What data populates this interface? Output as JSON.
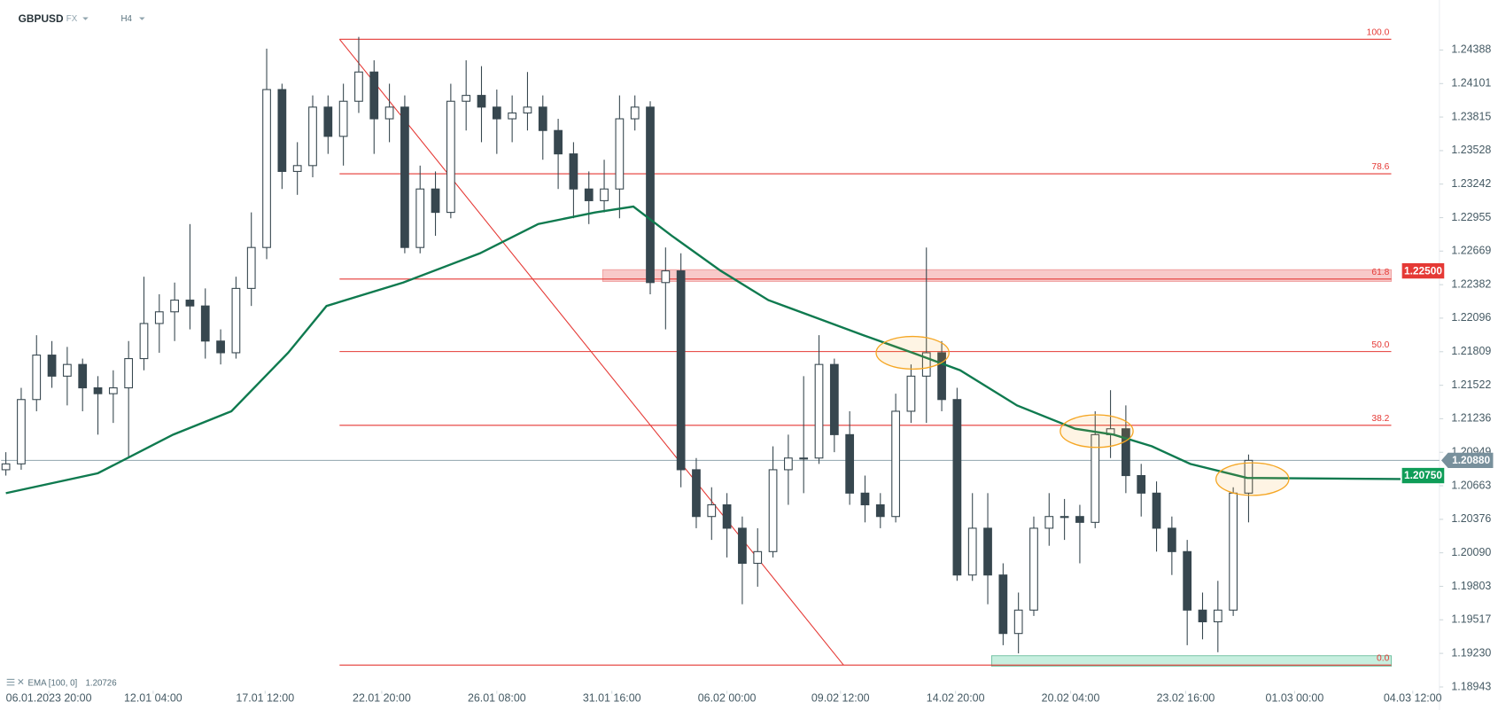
{
  "chart_data": {
    "type": "candlestick",
    "symbol": "GBPUSD",
    "market": "FX",
    "timeframe": "H4",
    "ylim": [
      1.1891,
      1.2475
    ],
    "yticks": [
      1.24388,
      1.24101,
      1.23815,
      1.23528,
      1.23242,
      1.22955,
      1.22669,
      1.22382,
      1.22096,
      1.21809,
      1.21522,
      1.21236,
      1.20949,
      1.20663,
      1.20376,
      {
        "value": 1.2009,
        "label": "1.20090"
      },
      1.19803,
      1.19517,
      {
        "value": 1.1923,
        "label": "1.19230"
      },
      1.18943
    ],
    "xlim": [
      -0.3125,
      93.4375
    ],
    "xticks": [
      {
        "value": 2.8,
        "label": "06.01.2023  20:00"
      },
      {
        "value": 9.6,
        "label": "12.01  04:00"
      },
      {
        "value": 16.9,
        "label": "17.01  12:00"
      },
      {
        "value": 24.5,
        "label": "22.01  20:00"
      },
      {
        "value": 32,
        "label": "26.01  08:00"
      },
      {
        "value": 39.5,
        "label": "31.01  16:00"
      },
      {
        "value": 47,
        "label": "06.02  00:00"
      },
      {
        "value": 54.4,
        "label": "09.02  12:00"
      },
      {
        "value": 61.9,
        "label": "14.02  20:00"
      },
      {
        "value": 69.4,
        "label": "20.02  04:00"
      },
      {
        "value": 76.9,
        "label": "23.02  16:00"
      },
      {
        "value": 84,
        "label": "01.03  00:00"
      },
      {
        "value": 91.7,
        "label": "04.03  12:00"
      }
    ],
    "up_color": "#ffffff",
    "down_color": "#37474f",
    "wick_color": "#37474f",
    "x": [
      0,
      1,
      2,
      3,
      4,
      5,
      6,
      7,
      8,
      9,
      10,
      11,
      12,
      13,
      14,
      15,
      16,
      17,
      18,
      19,
      20,
      21,
      22,
      23,
      24,
      25,
      26,
      27,
      28,
      29,
      30,
      31,
      32,
      33,
      34,
      35,
      36,
      37,
      38,
      39,
      40,
      41,
      42,
      43,
      44,
      45,
      46,
      47,
      48,
      49,
      50,
      51,
      52,
      53,
      54,
      55,
      56,
      57,
      58,
      59,
      60,
      61,
      62,
      63,
      64,
      65,
      66,
      67,
      68,
      69,
      70,
      71,
      72,
      73,
      74,
      75,
      76,
      77,
      78,
      79,
      80,
      81
    ],
    "candles": [
      [
        1.208,
        1.2095,
        1.2075,
        1.2085
      ],
      [
        1.2085,
        1.215,
        1.208,
        1.214
      ],
      [
        1.214,
        1.2195,
        1.213,
        1.2178
      ],
      [
        1.2178,
        1.219,
        1.215,
        1.216
      ],
      [
        1.216,
        1.2185,
        1.2135,
        1.217
      ],
      [
        1.217,
        1.2175,
        1.213,
        1.215
      ],
      [
        1.215,
        1.216,
        1.211,
        1.2145
      ],
      [
        1.2145,
        1.2165,
        1.212,
        1.215
      ],
      [
        1.215,
        1.219,
        1.209,
        1.2175
      ],
      [
        1.2175,
        1.2245,
        1.2165,
        1.2205
      ],
      [
        1.2205,
        1.223,
        1.218,
        1.2215
      ],
      [
        1.2215,
        1.224,
        1.219,
        1.2225
      ],
      [
        1.2225,
        1.229,
        1.22,
        1.222
      ],
      [
        1.222,
        1.2235,
        1.2175,
        1.219
      ],
      [
        1.219,
        1.22,
        1.217,
        1.218
      ],
      [
        1.218,
        1.2245,
        1.2175,
        1.2235
      ],
      [
        1.2235,
        1.23,
        1.222,
        1.227
      ],
      [
        1.227,
        1.244,
        1.226,
        1.2405
      ],
      [
        1.2405,
        1.241,
        1.232,
        1.2335
      ],
      [
        1.2335,
        1.236,
        1.2315,
        1.234
      ],
      [
        1.234,
        1.24,
        1.233,
        1.239
      ],
      [
        1.239,
        1.24,
        1.235,
        1.2365
      ],
      [
        1.2365,
        1.241,
        1.234,
        1.2395
      ],
      [
        1.2395,
        1.245,
        1.2385,
        1.242
      ],
      [
        1.242,
        1.243,
        1.235,
        1.238
      ],
      [
        1.238,
        1.241,
        1.236,
        1.239
      ],
      [
        1.239,
        1.24,
        1.2265,
        1.227
      ],
      [
        1.227,
        1.234,
        1.2265,
        1.232
      ],
      [
        1.232,
        1.2335,
        1.228,
        1.23
      ],
      [
        1.23,
        1.241,
        1.2295,
        1.2395
      ],
      [
        1.2395,
        1.243,
        1.237,
        1.24
      ],
      [
        1.24,
        1.2425,
        1.236,
        1.239
      ],
      [
        1.239,
        1.2405,
        1.235,
        1.238
      ],
      [
        1.238,
        1.24,
        1.236,
        1.2385
      ],
      [
        1.2385,
        1.242,
        1.237,
        1.239
      ],
      [
        1.239,
        1.24,
        1.2345,
        1.237
      ],
      [
        1.237,
        1.238,
        1.232,
        1.235
      ],
      [
        1.235,
        1.236,
        1.2295,
        1.232
      ],
      [
        1.232,
        1.2335,
        1.229,
        1.231
      ],
      [
        1.231,
        1.2345,
        1.23,
        1.232
      ],
      [
        1.232,
        1.24,
        1.2295,
        1.238
      ],
      [
        1.238,
        1.24,
        1.237,
        1.239
      ],
      [
        1.239,
        1.2395,
        1.223,
        1.224
      ],
      [
        1.224,
        1.227,
        1.22,
        1.225
      ],
      [
        1.225,
        1.2265,
        1.2065,
        1.208
      ],
      [
        1.208,
        1.209,
        1.203,
        1.204
      ],
      [
        1.204,
        1.2065,
        1.202,
        1.205
      ],
      [
        1.205,
        1.206,
        1.2005,
        1.203
      ],
      [
        1.203,
        1.204,
        1.1965,
        1.2
      ],
      [
        1.2,
        1.203,
        1.198,
        1.201
      ],
      [
        1.201,
        1.21,
        1.2005,
        1.208
      ],
      [
        1.208,
        1.211,
        1.205,
        1.209
      ],
      [
        1.209,
        1.216,
        1.206,
        1.209
      ],
      [
        1.209,
        1.2195,
        1.2085,
        1.217
      ],
      [
        1.217,
        1.2175,
        1.2095,
        1.211
      ],
      [
        1.211,
        1.213,
        1.205,
        1.206
      ],
      [
        1.206,
        1.2075,
        1.2035,
        1.205
      ],
      [
        1.205,
        1.206,
        1.203,
        1.204
      ],
      [
        1.204,
        1.2145,
        1.2035,
        1.213
      ],
      [
        1.213,
        1.217,
        1.212,
        1.216
      ],
      [
        1.216,
        1.227,
        1.212,
        1.218
      ],
      [
        1.218,
        1.219,
        1.213,
        1.214
      ],
      [
        1.214,
        1.215,
        1.1985,
        1.199
      ],
      [
        1.199,
        1.206,
        1.1985,
        1.203
      ],
      [
        1.203,
        1.206,
        1.1965,
        1.199
      ],
      [
        1.199,
        1.2,
        1.193,
        1.194
      ],
      [
        1.194,
        1.1975,
        1.1923,
        1.196
      ],
      [
        1.196,
        1.204,
        1.1955,
        1.203
      ],
      [
        1.203,
        1.206,
        1.2015,
        1.204
      ],
      [
        1.204,
        1.2055,
        1.202,
        1.204
      ],
      [
        1.204,
        1.205,
        1.2,
        1.2035
      ],
      [
        1.2035,
        1.213,
        1.203,
        1.211
      ],
      [
        1.211,
        1.2148,
        1.209,
        1.2115
      ],
      [
        1.2115,
        1.2135,
        1.206,
        1.2075
      ],
      [
        1.2075,
        1.2085,
        1.204,
        1.206
      ],
      [
        1.206,
        1.207,
        1.201,
        1.203
      ],
      [
        1.203,
        1.204,
        1.199,
        1.201
      ],
      [
        1.201,
        1.202,
        1.193,
        1.196
      ],
      [
        1.196,
        1.1975,
        1.1935,
        1.195
      ],
      [
        1.195,
        1.1985,
        1.1924,
        1.196
      ],
      [
        1.196,
        1.2065,
        1.1955,
        1.206
      ],
      [
        1.206,
        1.2093,
        1.2035,
        1.2088
      ]
    ],
    "ema": {
      "name": "EMA [100, 0]",
      "last": 1.20726,
      "color": "#0f7a4f",
      "x": [
        0,
        6,
        10.9,
        14.7,
        18.4,
        20.9,
        25.9,
        30.9,
        34.7,
        38.4,
        40.9,
        43.4,
        46.6,
        49.7,
        52.8,
        55.9,
        59.1,
        62.2,
        65.9,
        69.7,
        72.2,
        74.7,
        77.2,
        80.9,
        90.9
      ],
      "values": [
        1.206,
        1.2077,
        1.211,
        1.213,
        1.218,
        1.222,
        1.224,
        1.2265,
        1.229,
        1.23,
        1.2305,
        1.228,
        1.225,
        1.2225,
        1.221,
        1.2195,
        1.218,
        1.2165,
        1.2135,
        1.2115,
        1.211,
        1.21,
        1.2085,
        1.2073,
        1.2072
      ]
    },
    "fib": {
      "x": [
        21.75,
        90.3
      ],
      "color": "#e53935",
      "levels": [
        {
          "level": "100.0",
          "price": 1.2448
        },
        {
          "level": "78.6",
          "price": 1.2333
        },
        {
          "level": "61.8",
          "price": 1.2243
        },
        {
          "level": "50.0",
          "price": 1.2181
        },
        {
          "level": "38.2",
          "price": 1.2118
        },
        {
          "level": "0.0",
          "price": 1.1913
        }
      ]
    },
    "trendline": {
      "x": [
        21.75,
        54.6
      ],
      "y": [
        1.2448,
        1.1913
      ],
      "color": "#e53935"
    },
    "zones": [
      {
        "x": [
          38.9,
          90.3
        ],
        "y": [
          1.2241,
          1.2251
        ],
        "color": "#f8c9c9",
        "border": "#ef9a9a"
      },
      {
        "x": [
          64.25,
          90.3
        ],
        "y": [
          1.1912,
          1.1921
        ],
        "color": "#c7efdf",
        "border": "#66bb9a"
      }
    ],
    "highlights": [
      {
        "x": 59.1,
        "y": 1.218
      },
      {
        "x": 71.1,
        "y": 1.2113
      },
      {
        "x": 81.25,
        "y": 1.2072
      }
    ],
    "highlight_color": "#f5a623",
    "price_labels": [
      {
        "value": 1.225,
        "label": "1.22500",
        "color": "#e53935"
      },
      {
        "value": 1.2088,
        "label": "1.20880",
        "color": "#78909c",
        "line": true
      },
      {
        "value": 1.2075,
        "label": "1.20750",
        "color": "#0f9d58"
      }
    ]
  }
}
